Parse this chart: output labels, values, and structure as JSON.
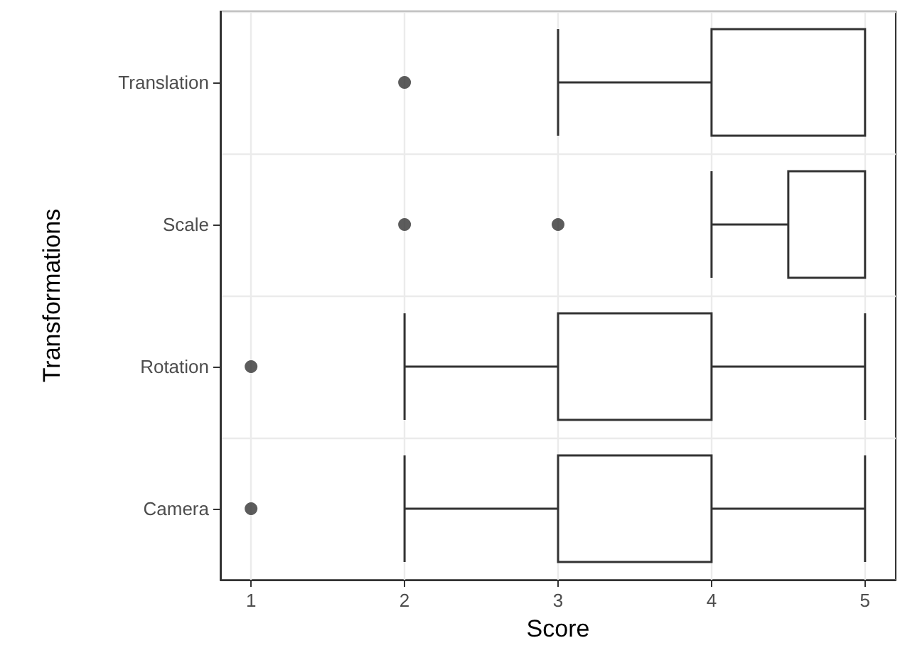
{
  "chart_data": {
    "type": "box",
    "orientation": "horizontal",
    "xlabel": "Score",
    "ylabel": "Transformations",
    "categories": [
      "Translation",
      "Scale",
      "Rotation",
      "Camera"
    ],
    "boxes": [
      {
        "low": 3,
        "q1": 4,
        "median": 4,
        "q3": 5,
        "high": 5,
        "outliers": [
          2
        ]
      },
      {
        "low": 4,
        "q1": 4.5,
        "median": 5,
        "q3": 5,
        "high": 5,
        "outliers": [
          2,
          3
        ]
      },
      {
        "low": 2,
        "q1": 3,
        "median": 3,
        "q3": 4,
        "high": 5,
        "outliers": [
          1
        ]
      },
      {
        "low": 2,
        "q1": 3,
        "median": 3,
        "q3": 4,
        "high": 5,
        "outliers": [
          1
        ]
      }
    ],
    "color": "#333333",
    "marker": "circle",
    "xlim": [
      0.8,
      5.2
    ],
    "xticks": [
      1,
      2,
      3,
      4,
      5
    ],
    "grid": true
  }
}
